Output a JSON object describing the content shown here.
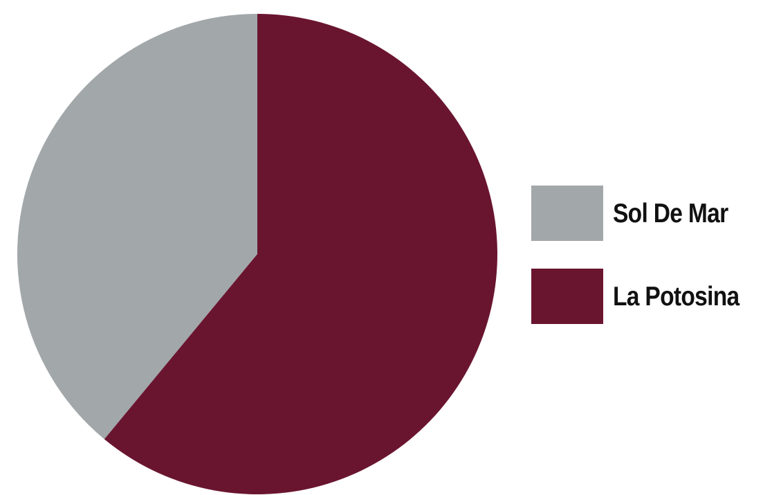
{
  "chart_data": {
    "type": "pie",
    "title": "",
    "categories": [
      "Sol De Mar",
      "La Potosina"
    ],
    "values": [
      39,
      61
    ],
    "colors": [
      "#a2a7aa",
      "#6a1530"
    ],
    "start_angle_deg": 0,
    "direction": "counterclockwise",
    "legend_position": "right"
  }
}
